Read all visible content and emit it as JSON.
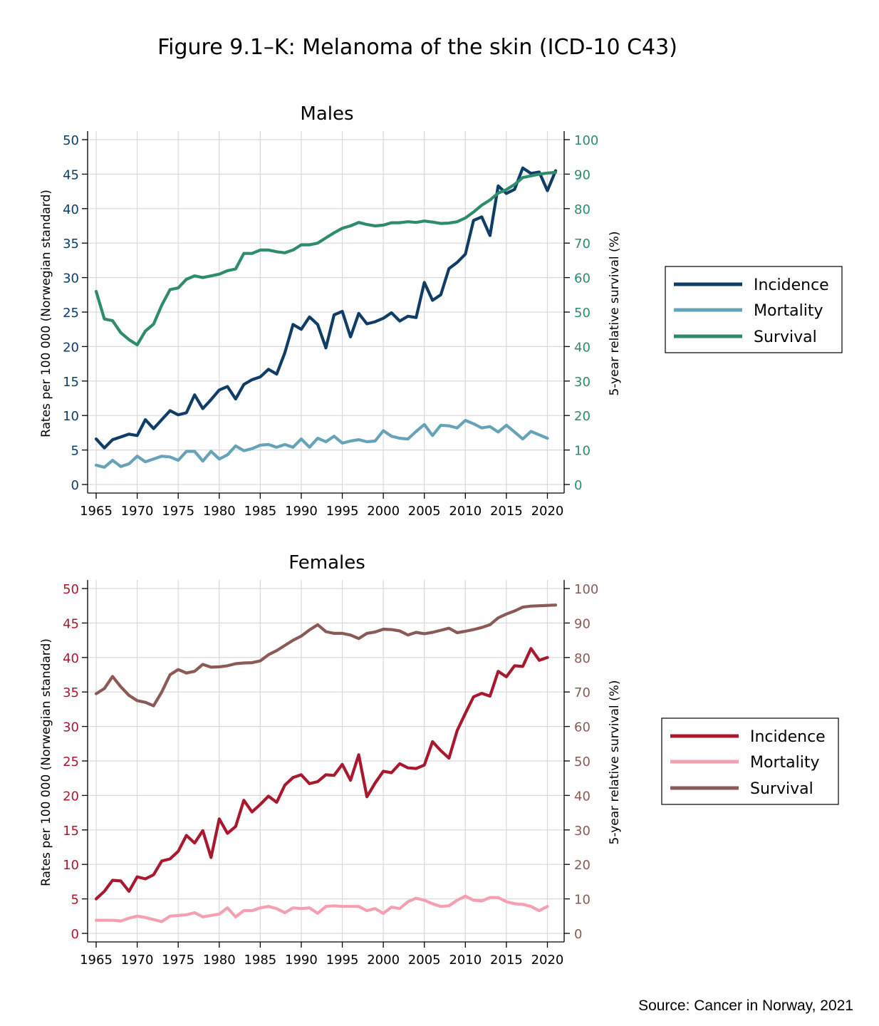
{
  "figure_title": "Figure 9.1–K: Melanoma of the skin (ICD-10 C43)",
  "source": "Source: Cancer in Norway, 2021",
  "chart_data": [
    {
      "type": "line",
      "title": "Males",
      "ylabel": "Rates per 100 000 (Norwegian standard)",
      "y2label": "5-year relative survival (%)",
      "ylim": [
        0,
        50
      ],
      "y2lim": [
        0,
        100
      ],
      "xlim": [
        1965,
        2021
      ],
      "x_ticks": [
        "1965",
        "1970",
        "1975",
        "1980",
        "1985",
        "1990",
        "1995",
        "2000",
        "2005",
        "2010",
        "2015",
        "2020"
      ],
      "y_ticks": [
        "0",
        "5",
        "10",
        "15",
        "20",
        "25",
        "30",
        "35",
        "40",
        "45",
        "50"
      ],
      "y2_ticks": [
        "0",
        "10",
        "20",
        "30",
        "40",
        "50",
        "60",
        "70",
        "80",
        "90",
        "100"
      ],
      "grid": true,
      "legend_position": "right",
      "colors": {
        "left_axis": "#0f3d66",
        "right_axis": "#2e8b6b"
      },
      "series": [
        {
          "name": "Incidence",
          "axis": "left",
          "color": "#0f3d66",
          "x": [
            1965,
            1966,
            1967,
            1968,
            1969,
            1970,
            1971,
            1972,
            1973,
            1974,
            1975,
            1976,
            1977,
            1978,
            1979,
            1980,
            1981,
            1982,
            1983,
            1984,
            1985,
            1986,
            1987,
            1988,
            1989,
            1990,
            1991,
            1992,
            1993,
            1994,
            1995,
            1996,
            1997,
            1998,
            1999,
            2000,
            2001,
            2002,
            2003,
            2004,
            2005,
            2006,
            2007,
            2008,
            2009,
            2010,
            2011,
            2012,
            2013,
            2014,
            2015,
            2016,
            2017,
            2018,
            2019,
            2020,
            2021
          ],
          "values": [
            6.6,
            5.3,
            6.5,
            6.9,
            7.3,
            7.1,
            9.4,
            8.1,
            9.4,
            10.7,
            10.1,
            10.4,
            13.0,
            11.0,
            12.3,
            13.7,
            14.2,
            12.4,
            14.5,
            15.2,
            15.6,
            16.7,
            16.0,
            19.1,
            23.2,
            22.5,
            24.3,
            23.2,
            19.8,
            24.6,
            25.1,
            21.4,
            24.8,
            23.3,
            23.6,
            24.1,
            24.9,
            23.7,
            24.4,
            24.2,
            29.3,
            26.7,
            27.5,
            31.3,
            32.2,
            33.4,
            38.3,
            38.8,
            36.1,
            43.3,
            42.2,
            42.8,
            45.9,
            45.1,
            45.3,
            42.6,
            45.5
          ]
        },
        {
          "name": "Mortality",
          "axis": "left",
          "color": "#66a3b8",
          "x": [
            1965,
            1966,
            1967,
            1968,
            1969,
            1970,
            1971,
            1972,
            1973,
            1974,
            1975,
            1976,
            1977,
            1978,
            1979,
            1980,
            1981,
            1982,
            1983,
            1984,
            1985,
            1986,
            1987,
            1988,
            1989,
            1990,
            1991,
            1992,
            1993,
            1994,
            1995,
            1996,
            1997,
            1998,
            1999,
            2000,
            2001,
            2002,
            2003,
            2004,
            2005,
            2006,
            2007,
            2008,
            2009,
            2010,
            2011,
            2012,
            2013,
            2014,
            2015,
            2016,
            2017,
            2018,
            2019,
            2020
          ],
          "values": [
            2.8,
            2.5,
            3.5,
            2.6,
            3.0,
            4.1,
            3.3,
            3.7,
            4.1,
            4.0,
            3.5,
            4.8,
            4.8,
            3.4,
            4.8,
            3.7,
            4.3,
            5.6,
            4.9,
            5.2,
            5.7,
            5.8,
            5.4,
            5.8,
            5.4,
            6.6,
            5.4,
            6.7,
            6.2,
            7.0,
            6.0,
            6.3,
            6.5,
            6.2,
            6.3,
            7.8,
            7.0,
            6.7,
            6.6,
            7.7,
            8.7,
            7.1,
            8.6,
            8.5,
            8.2,
            9.3,
            8.8,
            8.2,
            8.4,
            7.6,
            8.6,
            7.6,
            6.6,
            7.7,
            7.2,
            6.7
          ]
        },
        {
          "name": "Survival",
          "axis": "right",
          "color": "#2e8b6b",
          "x": [
            1965,
            1966,
            1967,
            1968,
            1969,
            1970,
            1971,
            1972,
            1973,
            1974,
            1975,
            1976,
            1977,
            1978,
            1979,
            1980,
            1981,
            1982,
            1983,
            1984,
            1985,
            1986,
            1987,
            1988,
            1989,
            1990,
            1991,
            1992,
            1993,
            1994,
            1995,
            1996,
            1997,
            1998,
            1999,
            2000,
            2001,
            2002,
            2003,
            2004,
            2005,
            2006,
            2007,
            2008,
            2009,
            2010,
            2011,
            2012,
            2013,
            2014,
            2015,
            2016,
            2017,
            2018,
            2019,
            2020,
            2021
          ],
          "values": [
            56,
            48,
            47.5,
            44,
            42,
            40.5,
            44.5,
            46.5,
            52,
            56.5,
            57,
            59.5,
            60.5,
            60,
            60.5,
            61,
            62,
            62.5,
            67,
            67,
            68,
            68,
            67.5,
            67.2,
            68,
            69.5,
            69.5,
            70,
            71.5,
            73,
            74.3,
            75,
            76,
            75.4,
            75,
            75.2,
            75.9,
            75.9,
            76.2,
            76,
            76.4,
            76.1,
            75.7,
            75.8,
            76.2,
            77.3,
            79,
            81,
            82.5,
            84.5,
            85.5,
            87,
            89,
            89.5,
            90,
            90.3,
            90.5
          ]
        }
      ]
    },
    {
      "type": "line",
      "title": "Females",
      "ylabel": "Rates per 100 000 (Norwegian standard)",
      "y2label": "5-year relative survival (%)",
      "ylim": [
        0,
        50
      ],
      "y2lim": [
        0,
        100
      ],
      "xlim": [
        1965,
        2021
      ],
      "x_ticks": [
        "1965",
        "1970",
        "1975",
        "1980",
        "1985",
        "1990",
        "1995",
        "2000",
        "2005",
        "2010",
        "2015",
        "2020"
      ],
      "y_ticks": [
        "0",
        "5",
        "10",
        "15",
        "20",
        "25",
        "30",
        "35",
        "40",
        "45",
        "50"
      ],
      "y2_ticks": [
        "0",
        "10",
        "20",
        "30",
        "40",
        "50",
        "60",
        "70",
        "80",
        "90",
        "100"
      ],
      "grid": true,
      "legend_position": "right",
      "colors": {
        "left_axis": "#a8192e",
        "right_axis": "#8a5a56"
      },
      "series": [
        {
          "name": "Incidence",
          "axis": "left",
          "color": "#a8192e",
          "x": [
            1965,
            1966,
            1967,
            1968,
            1969,
            1970,
            1971,
            1972,
            1973,
            1974,
            1975,
            1976,
            1977,
            1978,
            1979,
            1980,
            1981,
            1982,
            1983,
            1984,
            1985,
            1986,
            1987,
            1988,
            1989,
            1990,
            1991,
            1992,
            1993,
            1994,
            1995,
            1996,
            1997,
            1998,
            1999,
            2000,
            2001,
            2002,
            2003,
            2004,
            2005,
            2006,
            2007,
            2008,
            2009,
            2010,
            2011,
            2012,
            2013,
            2014,
            2015,
            2016,
            2017,
            2018,
            2019,
            2020
          ],
          "values": [
            5.0,
            6.1,
            7.7,
            7.6,
            6.1,
            8.2,
            7.9,
            8.5,
            10.5,
            10.8,
            11.9,
            14.2,
            13.1,
            14.9,
            11.0,
            16.6,
            14.5,
            15.5,
            19.3,
            17.6,
            18.7,
            19.9,
            19.0,
            21.5,
            22.6,
            23.0,
            21.7,
            22.0,
            23.0,
            22.9,
            24.5,
            22.2,
            25.9,
            19.8,
            21.8,
            23.5,
            23.3,
            24.6,
            24.0,
            23.9,
            24.4,
            27.8,
            26.5,
            25.4,
            29.4,
            31.9,
            34.3,
            34.8,
            34.4,
            38.0,
            37.2,
            38.8,
            38.7,
            41.3,
            39.6,
            40.0
          ]
        },
        {
          "name": "Mortality",
          "axis": "left",
          "color": "#f5a0b0",
          "x": [
            1965,
            1966,
            1967,
            1968,
            1969,
            1970,
            1971,
            1972,
            1973,
            1974,
            1975,
            1976,
            1977,
            1978,
            1979,
            1980,
            1981,
            1982,
            1983,
            1984,
            1985,
            1986,
            1987,
            1988,
            1989,
            1990,
            1991,
            1992,
            1993,
            1994,
            1995,
            1996,
            1997,
            1998,
            1999,
            2000,
            2001,
            2002,
            2003,
            2004,
            2005,
            2006,
            2007,
            2008,
            2009,
            2010,
            2011,
            2012,
            2013,
            2014,
            2015,
            2016,
            2017,
            2018,
            2019,
            2020
          ],
          "values": [
            1.9,
            1.9,
            1.9,
            1.8,
            2.2,
            2.5,
            2.3,
            2.0,
            1.7,
            2.5,
            2.6,
            2.7,
            3.0,
            2.4,
            2.6,
            2.8,
            3.7,
            2.4,
            3.3,
            3.3,
            3.7,
            3.9,
            3.6,
            3.0,
            3.7,
            3.6,
            3.7,
            2.9,
            3.9,
            4.0,
            3.9,
            3.9,
            3.9,
            3.3,
            3.6,
            2.9,
            3.8,
            3.6,
            4.6,
            5.1,
            4.8,
            4.3,
            3.9,
            4.0,
            4.8,
            5.4,
            4.8,
            4.7,
            5.2,
            5.2,
            4.6,
            4.3,
            4.2,
            3.9,
            3.3,
            3.9
          ]
        },
        {
          "name": "Survival",
          "axis": "right",
          "color": "#8a5a56",
          "x": [
            1965,
            1966,
            1967,
            1968,
            1969,
            1970,
            1971,
            1972,
            1973,
            1974,
            1975,
            1976,
            1977,
            1978,
            1979,
            1980,
            1981,
            1982,
            1983,
            1984,
            1985,
            1986,
            1987,
            1988,
            1989,
            1990,
            1991,
            1992,
            1993,
            1994,
            1995,
            1996,
            1997,
            1998,
            1999,
            2000,
            2001,
            2002,
            2003,
            2004,
            2005,
            2006,
            2007,
            2008,
            2009,
            2010,
            2011,
            2012,
            2013,
            2014,
            2015,
            2016,
            2017,
            2018,
            2019,
            2020,
            2021
          ],
          "values": [
            69.5,
            71,
            74.5,
            71.5,
            69,
            67.5,
            67,
            66,
            70,
            75,
            76.5,
            75.5,
            76,
            78,
            77.2,
            77.3,
            77.6,
            78.2,
            78.4,
            78.5,
            79,
            80.8,
            82,
            83.5,
            85,
            86.2,
            88,
            89.5,
            87.5,
            87,
            87,
            86.5,
            85.5,
            87,
            87.4,
            88.2,
            88.1,
            87.7,
            86.5,
            87.3,
            86.9,
            87.3,
            87.9,
            88.5,
            87.2,
            87.6,
            88.1,
            88.7,
            89.5,
            91.5,
            92.6,
            93.5,
            94.6,
            94.9,
            95,
            95.1,
            95.2
          ]
        }
      ]
    }
  ]
}
